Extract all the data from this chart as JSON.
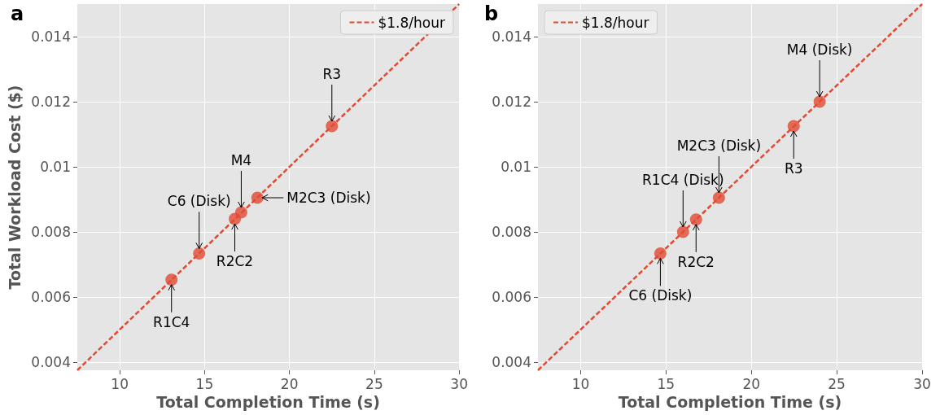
{
  "chart_data": [
    {
      "type": "scatter",
      "title": "a",
      "xlabel": "Total Completion Time (s)",
      "ylabel": "Total Workload Cost ($)",
      "xlim": [
        7.5,
        30
      ],
      "ylim": [
        0.00375,
        0.015
      ],
      "xticks": [
        10,
        15,
        20,
        25,
        30
      ],
      "yticks": [
        0.004,
        0.006,
        0.008,
        0.01,
        0.012,
        0.014
      ],
      "grid": true,
      "legend": "top right",
      "series": [
        {
          "marker": "circle",
          "color": "#e24a33",
          "x": [
            13.05,
            14.68,
            16.78,
            17.16,
            18.11,
            22.5
          ],
          "values": [
            0.00653,
            0.00734,
            0.0084,
            0.0086,
            0.00905,
            0.01125
          ]
        },
        {
          "type": "line",
          "name": "$1.8/hour",
          "color": "#e24a33",
          "line_style": "dashed",
          "x": [
            7.5,
            30
          ],
          "values": [
            0.00375,
            0.015
          ]
        }
      ],
      "annotations": [
        {
          "text": "R1C4",
          "x": 13.05,
          "y": 0.00653
        },
        {
          "text": "C6 (Disk)",
          "x": 14.68,
          "y": 0.00734
        },
        {
          "text": "R2C2",
          "x": 16.78,
          "y": 0.0084
        },
        {
          "text": "M4",
          "x": 17.16,
          "y": 0.0086
        },
        {
          "text": "M2C3 (Disk)",
          "x": 18.11,
          "y": 0.00905
        },
        {
          "text": "R3",
          "x": 22.5,
          "y": 0.01125
        }
      ]
    },
    {
      "type": "scatter",
      "title": "b",
      "xlabel": "Total Completion Time (s)",
      "xlim": [
        7.5,
        30
      ],
      "ylim": [
        0.00375,
        0.015
      ],
      "xticks": [
        10,
        15,
        20,
        25,
        30
      ],
      "yticks": [
        0.004,
        0.006,
        0.008,
        0.01,
        0.012,
        0.014
      ],
      "grid": true,
      "legend": "top left",
      "series": [
        {
          "marker": "circle",
          "color": "#e24a33",
          "x": [
            14.67,
            16.0,
            16.76,
            18.1,
            22.48,
            24.0
          ],
          "values": [
            0.00734,
            0.008,
            0.00838,
            0.00905,
            0.01125,
            0.012
          ]
        },
        {
          "type": "line",
          "name": "$1.8/hour",
          "color": "#e24a33",
          "line_style": "dashed",
          "x": [
            7.5,
            30
          ],
          "values": [
            0.00375,
            0.015
          ]
        }
      ],
      "annotations": [
        {
          "text": "C6 (Disk)",
          "x": 14.67,
          "y": 0.00734
        },
        {
          "text": "R1C4 (Disk)",
          "x": 16.0,
          "y": 0.008
        },
        {
          "text": "R2C2",
          "x": 16.76,
          "y": 0.00838
        },
        {
          "text": "M2C3 (Disk)",
          "x": 18.1,
          "y": 0.00905
        },
        {
          "text": "R3",
          "x": 22.48,
          "y": 0.01125
        },
        {
          "text": "M4 (Disk)",
          "x": 24.0,
          "y": 0.012
        }
      ]
    }
  ]
}
